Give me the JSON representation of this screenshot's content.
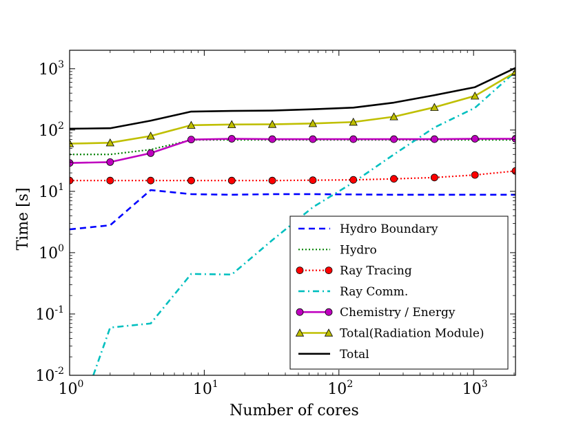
{
  "chart_data": {
    "type": "line",
    "title": "",
    "xlabel": "Number of cores",
    "ylabel": "Time [s]",
    "xscale": "log",
    "yscale": "log",
    "xlim": [
      1,
      2048
    ],
    "ylim": [
      0.01,
      2000
    ],
    "legend_position": "lower-right",
    "x_ticks": [
      {
        "base": "10",
        "exp": "0",
        "value": 1
      },
      {
        "base": "10",
        "exp": "1",
        "value": 10
      },
      {
        "base": "10",
        "exp": "2",
        "value": 100
      },
      {
        "base": "10",
        "exp": "3",
        "value": 1000
      }
    ],
    "y_ticks": [
      {
        "base": "10",
        "exp": "-2",
        "value": 0.01
      },
      {
        "base": "10",
        "exp": "-1",
        "value": 0.1
      },
      {
        "base": "10",
        "exp": "0",
        "value": 1
      },
      {
        "base": "10",
        "exp": "1",
        "value": 10
      },
      {
        "base": "10",
        "exp": "2",
        "value": 100
      },
      {
        "base": "10",
        "exp": "3",
        "value": 1000
      }
    ],
    "series": [
      {
        "name": "Hydro Boundary",
        "color": "#0000ff",
        "dash": "dashed",
        "marker": "none",
        "x": [
          1,
          2,
          4,
          8,
          16,
          32,
          64,
          128,
          256,
          512,
          1024,
          2048
        ],
        "y": [
          2.4,
          2.8,
          10.5,
          9.0,
          8.8,
          9.0,
          9.0,
          8.9,
          8.8,
          8.8,
          8.8,
          8.8
        ]
      },
      {
        "name": "Hydro",
        "color": "#008000",
        "dash": "dotted",
        "marker": "none",
        "x": [
          1,
          2,
          4,
          8,
          16,
          32,
          64,
          128,
          256,
          512,
          1024,
          2048
        ],
        "y": [
          40,
          40,
          48,
          69,
          69,
          69,
          69,
          69,
          69,
          69,
          69,
          69
        ]
      },
      {
        "name": "Ray Tracing",
        "color": "#ff0000",
        "dash": "dotted",
        "marker": "circle",
        "marker_fill": "#ff0000",
        "x": [
          1,
          2,
          4,
          8,
          16,
          32,
          64,
          128,
          256,
          512,
          1024,
          2048
        ],
        "y": [
          15,
          15,
          15,
          15,
          15,
          15,
          15.2,
          15.4,
          16,
          16.8,
          18.5,
          21.5
        ]
      },
      {
        "name": "Ray Comm.",
        "color": "#00bfbf",
        "dash": "dashdot",
        "marker": "none",
        "x": [
          1.5,
          2,
          4,
          8,
          16,
          32,
          64,
          128,
          256,
          512,
          1024,
          2048
        ],
        "y": [
          0.01,
          0.06,
          0.07,
          0.45,
          0.44,
          1.6,
          5.5,
          14,
          40,
          110,
          230,
          900
        ]
      },
      {
        "name": "Chemistry / Energy",
        "color": "#bf00bf",
        "dash": "solid",
        "marker": "circle",
        "marker_fill": "#bf00bf",
        "x": [
          1,
          2,
          4,
          8,
          16,
          32,
          64,
          128,
          256,
          512,
          1024,
          2048
        ],
        "y": [
          29,
          30,
          42,
          70,
          72,
          71,
          71,
          71,
          71,
          71,
          72,
          72
        ]
      },
      {
        "name": "Total(Radiation Module)",
        "color": "#bfbf00",
        "dash": "solid",
        "marker": "triangle",
        "marker_fill": "#bfbf00",
        "x": [
          1,
          2,
          4,
          8,
          16,
          32,
          64,
          128,
          256,
          512,
          1024,
          2048
        ],
        "y": [
          60,
          62,
          80,
          120,
          123,
          124,
          128,
          135,
          165,
          235,
          360,
          880
        ]
      },
      {
        "name": "Total",
        "color": "#000000",
        "dash": "solid",
        "marker": "none",
        "x": [
          1,
          2,
          4,
          8,
          16,
          32,
          64,
          128,
          256,
          512,
          1024,
          2048
        ],
        "y": [
          105,
          107,
          142,
          200,
          205,
          208,
          218,
          232,
          280,
          370,
          500,
          1030
        ]
      }
    ]
  }
}
